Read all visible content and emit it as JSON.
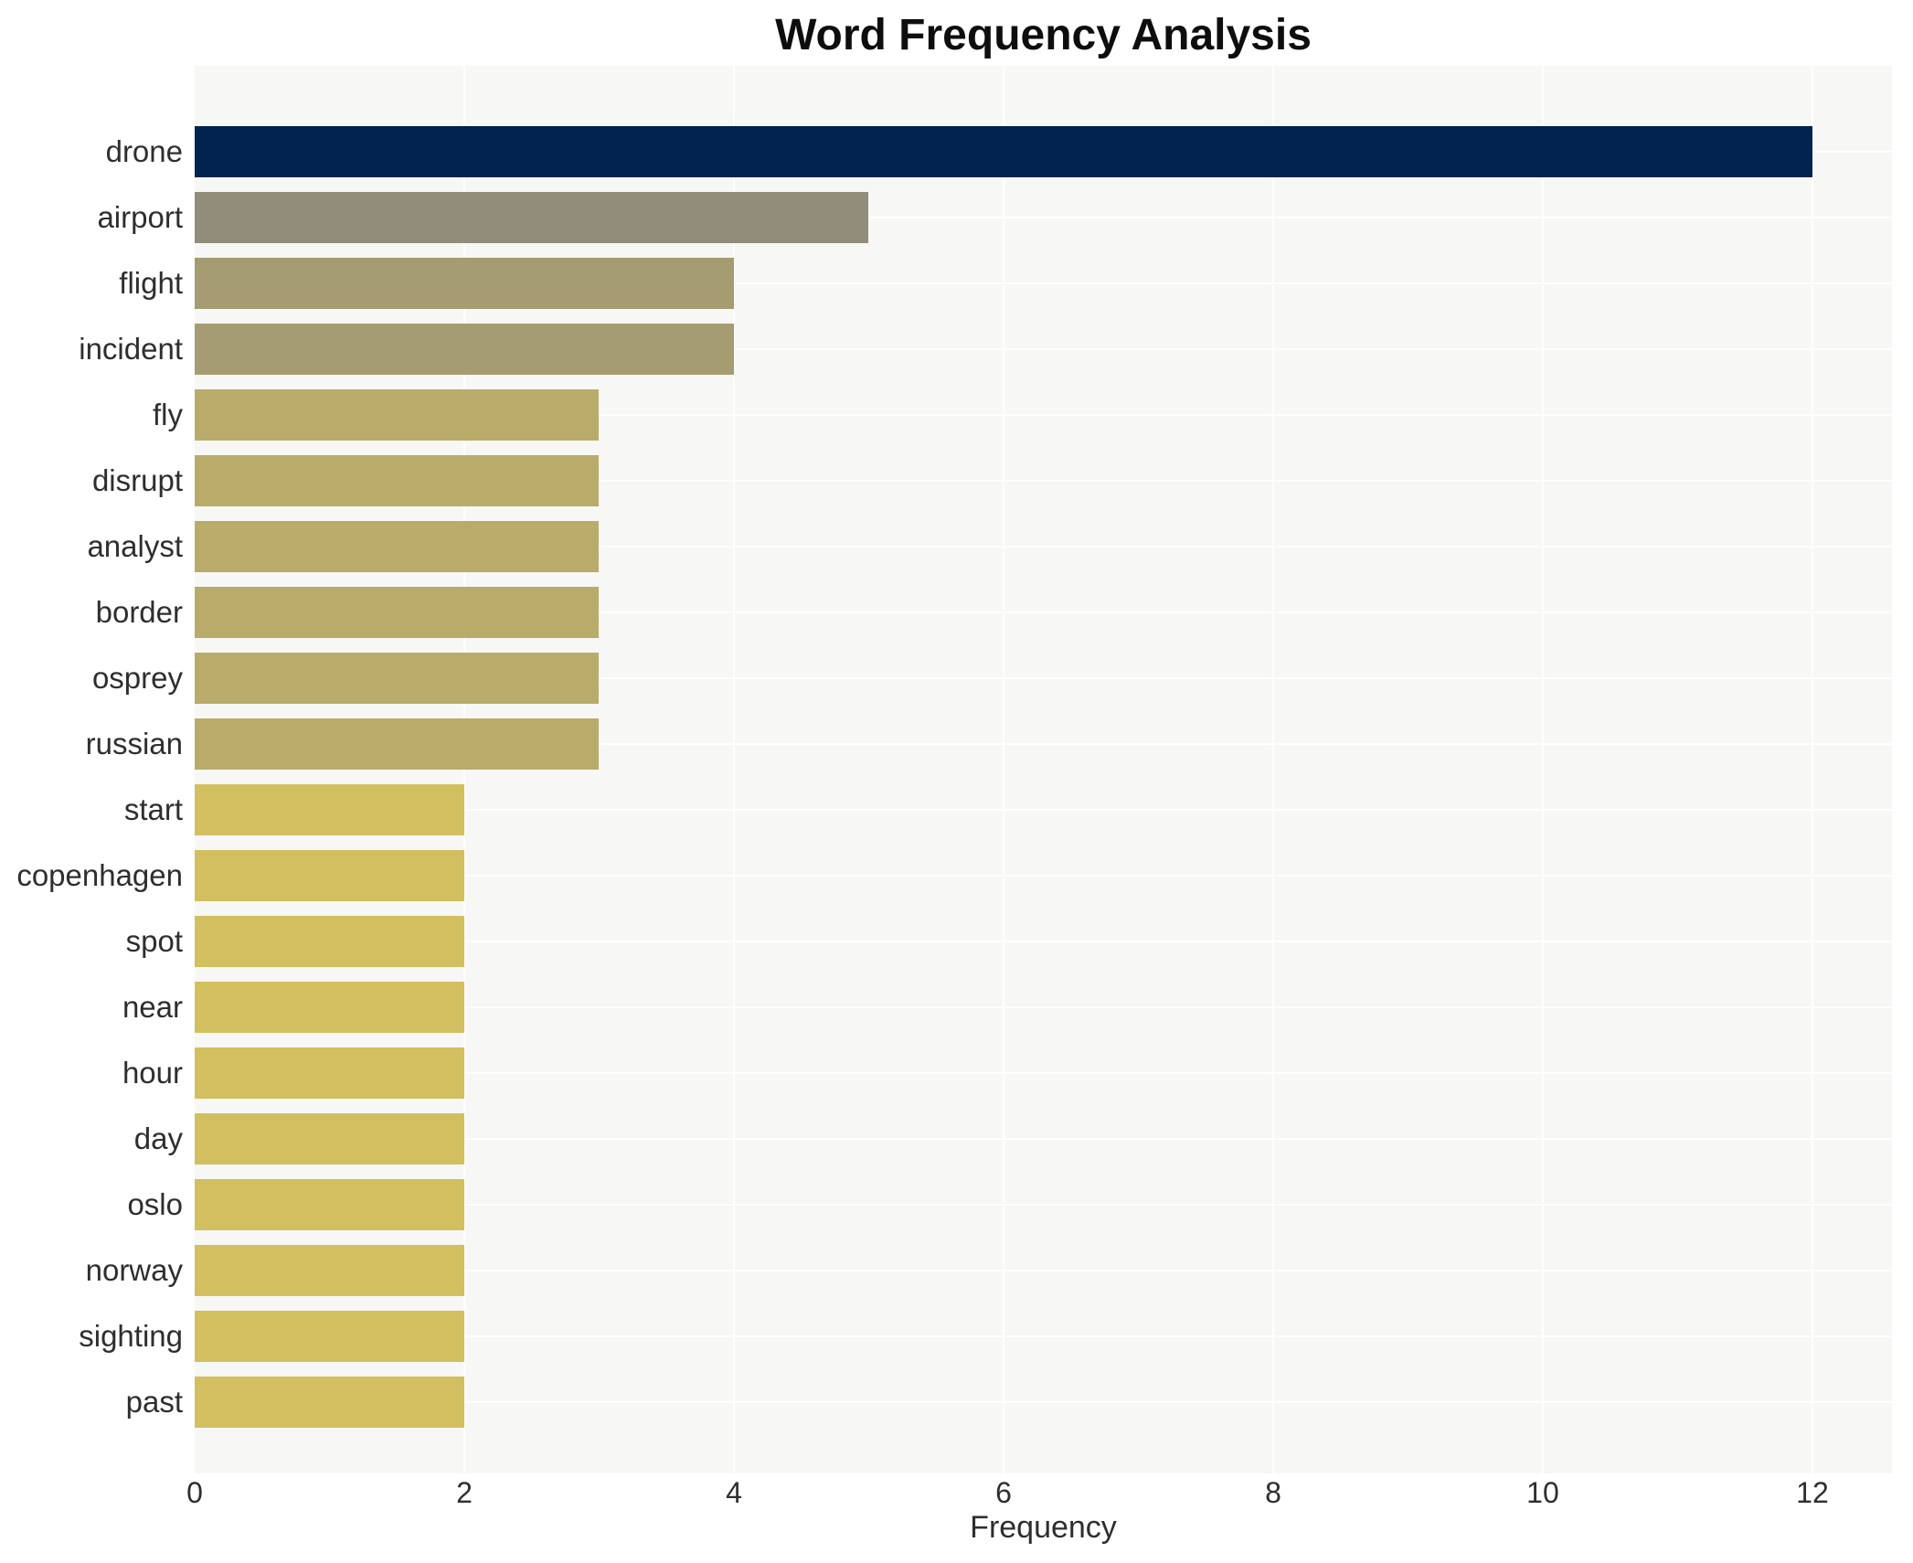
{
  "chart_data": {
    "type": "bar",
    "orientation": "horizontal",
    "title": "Word Frequency Analysis",
    "xlabel": "Frequency",
    "ylabel": "",
    "categories": [
      "drone",
      "airport",
      "flight",
      "incident",
      "fly",
      "disrupt",
      "analyst",
      "border",
      "osprey",
      "russian",
      "start",
      "copenhagen",
      "spot",
      "near",
      "hour",
      "day",
      "oslo",
      "norway",
      "sighting",
      "past"
    ],
    "values": [
      12,
      5,
      4,
      4,
      3,
      3,
      3,
      3,
      3,
      3,
      2,
      2,
      2,
      2,
      2,
      2,
      2,
      2,
      2,
      2
    ],
    "colors": [
      "#02234e",
      "#928c7b",
      "#a59c71",
      "#a59c71",
      "#b9ab69",
      "#b9ab69",
      "#b9ab69",
      "#b9ab69",
      "#b9ab69",
      "#b9ab69",
      "#d2bf60",
      "#d2bf60",
      "#d2bf60",
      "#d2bf60",
      "#d2bf60",
      "#d2bf60",
      "#d2bf60",
      "#d2bf60",
      "#d2bf60",
      "#d2bf60"
    ],
    "xticks": [
      0,
      2,
      4,
      6,
      8,
      10,
      12
    ],
    "xlim": [
      0,
      12.59
    ],
    "grid": true,
    "legend": "none",
    "plot_background": "#f7f7f5",
    "grid_color": "#ffffff"
  }
}
